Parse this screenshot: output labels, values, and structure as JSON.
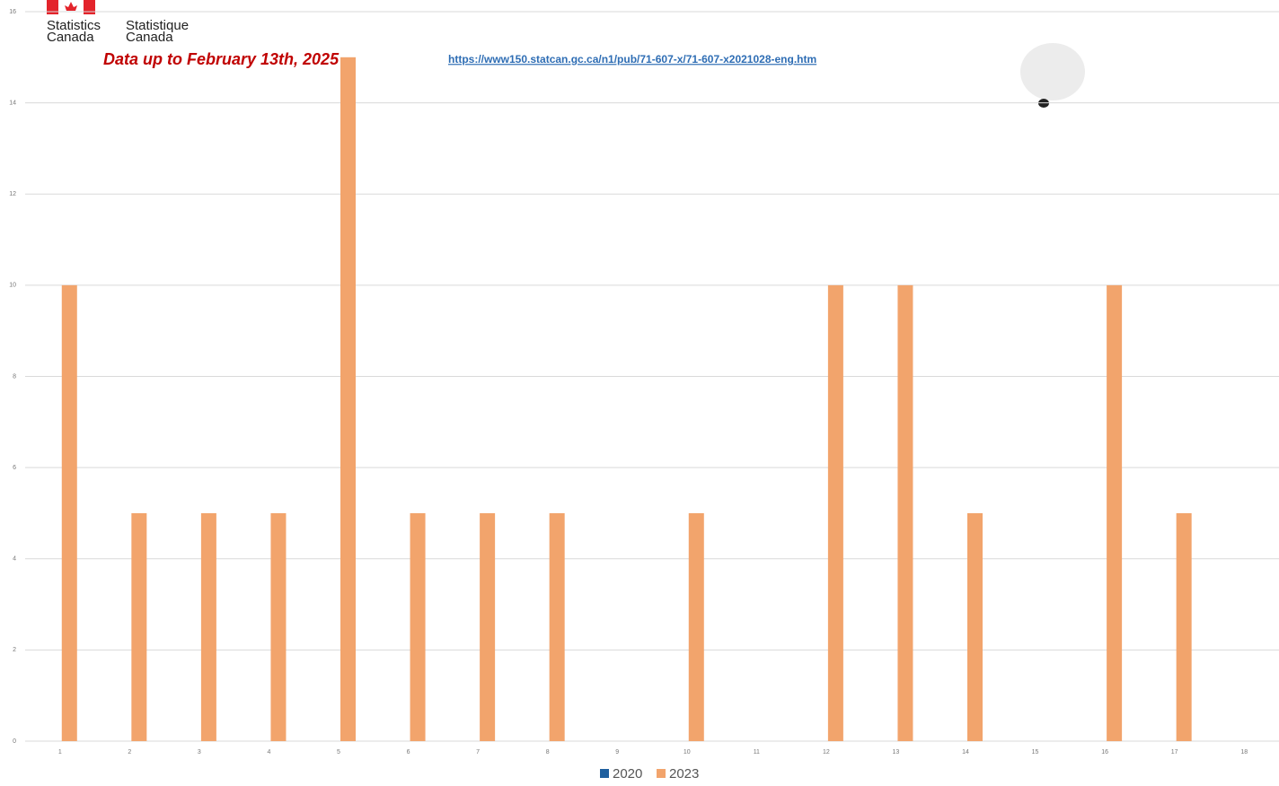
{
  "logo": {
    "english_1": "Statistics",
    "english_2": "Canada",
    "french_1": "Statistique",
    "french_2": "Canada"
  },
  "chart_data": {
    "type": "bar",
    "annotation": "Data up to February 13th, 2025",
    "source_url": "https://www150.statcan.gc.ca/n1/pub/71-607-x/71-607-x2021028-eng.htm",
    "categories": [
      "1",
      "2",
      "3",
      "4",
      "5",
      "6",
      "7",
      "8",
      "9",
      "10",
      "11",
      "12",
      "13",
      "14",
      "15",
      "16",
      "17",
      "18"
    ],
    "series": [
      {
        "name": "2020",
        "color": "#1f5f9e",
        "values": [
          0,
          0,
          0,
          0,
          0,
          0,
          0,
          0,
          0,
          0,
          0,
          0,
          0,
          0,
          0,
          0,
          0,
          0
        ]
      },
      {
        "name": "2023",
        "color": "#f2a46c",
        "values": [
          10,
          5,
          5,
          5,
          15,
          5,
          5,
          5,
          0,
          5,
          0,
          10,
          10,
          5,
          0,
          10,
          5,
          0
        ]
      }
    ],
    "ylim": [
      0,
      16
    ],
    "yticks": [
      0,
      2,
      4,
      6,
      8,
      10,
      12,
      14,
      16
    ],
    "grid": true,
    "legend": "bottom"
  }
}
